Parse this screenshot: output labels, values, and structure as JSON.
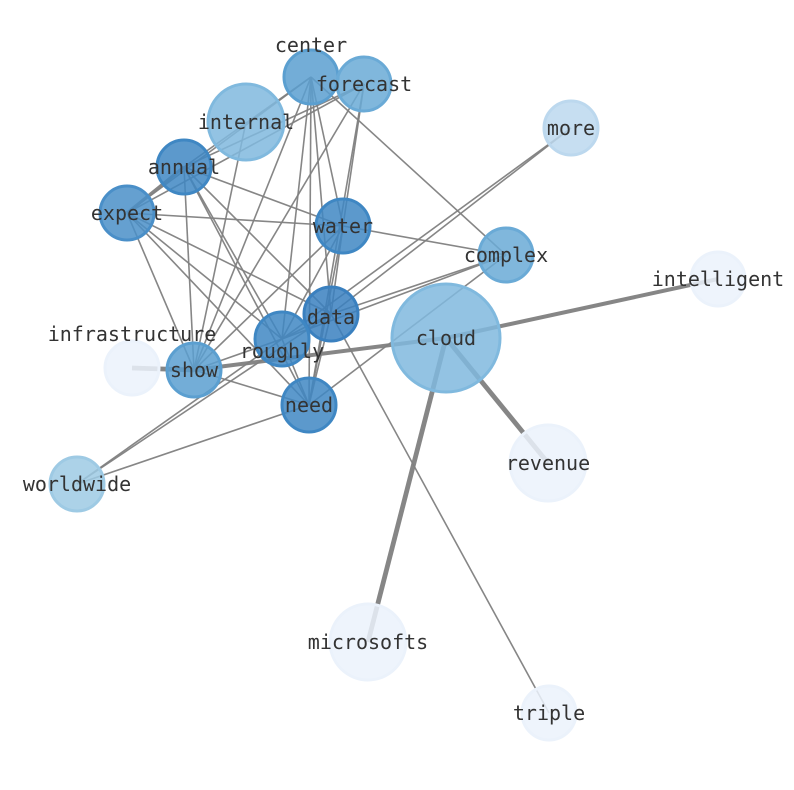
{
  "colors": {
    "edge": "#808080",
    "label": "#333333"
  },
  "nodes": [
    {
      "id": "center",
      "label": "center",
      "color": "#5b9fd0",
      "size": 1
    },
    {
      "id": "forecast",
      "label": "forecast",
      "color": "#6aaad6",
      "size": 1
    },
    {
      "id": "internal",
      "label": "internal",
      "color": "#80b9de",
      "size": 2
    },
    {
      "id": "annual",
      "label": "annual",
      "color": "#3f87c3",
      "size": 1
    },
    {
      "id": "expect",
      "label": "expect",
      "color": "#4a8fc8",
      "size": 1
    },
    {
      "id": "water",
      "label": "water",
      "color": "#3f87c3",
      "size": 1
    },
    {
      "id": "more",
      "label": "more",
      "color": "#bcd8ee",
      "size": 1
    },
    {
      "id": "complex",
      "label": "complex",
      "color": "#6aaad6",
      "size": 1
    },
    {
      "id": "intelligent",
      "label": "intelligent",
      "color": "#ebf2fb",
      "size": 1
    },
    {
      "id": "data",
      "label": "data",
      "color": "#3a80bf",
      "size": 1
    },
    {
      "id": "cloud",
      "label": "cloud",
      "color": "#80b9de",
      "size": 4
    },
    {
      "id": "roughly",
      "label": "roughly",
      "color": "#3f87c3",
      "size": 1
    },
    {
      "id": "infrastructure",
      "label": "infrastructure",
      "color": "#ebf2fb",
      "size": 1
    },
    {
      "id": "show",
      "label": "show",
      "color": "#5b9fd0",
      "size": 1
    },
    {
      "id": "need",
      "label": "need",
      "color": "#3f87c3",
      "size": 1
    },
    {
      "id": "revenue",
      "label": "revenue",
      "color": "#ebf2fb",
      "size": 2
    },
    {
      "id": "worldwide",
      "label": "worldwide",
      "color": "#9ecae4",
      "size": 1
    },
    {
      "id": "microsofts",
      "label": "microsofts",
      "color": "#ebf2fb",
      "size": 2
    },
    {
      "id": "triple",
      "label": "triple",
      "color": "#ebf2fb",
      "size": 1
    }
  ],
  "edges": [
    [
      "center",
      "expect",
      1
    ],
    [
      "center",
      "annual",
      1
    ],
    [
      "center",
      "water",
      1
    ],
    [
      "center",
      "roughly",
      1
    ],
    [
      "center",
      "need",
      1
    ],
    [
      "center",
      "data",
      1
    ],
    [
      "center",
      "complex",
      1
    ],
    [
      "center",
      "show",
      1
    ],
    [
      "forecast",
      "expect",
      1
    ],
    [
      "forecast",
      "annual",
      1
    ],
    [
      "forecast",
      "water",
      1
    ],
    [
      "forecast",
      "show",
      1
    ],
    [
      "forecast",
      "need",
      1
    ],
    [
      "internal",
      "show",
      1
    ],
    [
      "annual",
      "expect",
      2
    ],
    [
      "annual",
      "show",
      1
    ],
    [
      "annual",
      "roughly",
      1
    ],
    [
      "annual",
      "need",
      1
    ],
    [
      "annual",
      "water",
      1
    ],
    [
      "annual",
      "data",
      1
    ],
    [
      "expect",
      "water",
      1
    ],
    [
      "expect",
      "show",
      1
    ],
    [
      "expect",
      "roughly",
      1
    ],
    [
      "expect",
      "need",
      1
    ],
    [
      "expect",
      "data",
      1
    ],
    [
      "water",
      "complex",
      1
    ],
    [
      "water",
      "show",
      1
    ],
    [
      "water",
      "roughly",
      1
    ],
    [
      "water",
      "need",
      1
    ],
    [
      "water",
      "data",
      1
    ],
    [
      "data",
      "more",
      1
    ],
    [
      "data",
      "complex",
      1
    ],
    [
      "data",
      "worldwide",
      1
    ],
    [
      "data",
      "triple",
      1
    ],
    [
      "data",
      "roughly",
      1
    ],
    [
      "data",
      "need",
      1
    ],
    [
      "roughly",
      "more",
      1
    ],
    [
      "roughly",
      "complex",
      1
    ],
    [
      "roughly",
      "worldwide",
      1
    ],
    [
      "roughly",
      "need",
      1
    ],
    [
      "roughly",
      "show",
      1
    ],
    [
      "need",
      "worldwide",
      1
    ],
    [
      "need",
      "show",
      1
    ],
    [
      "need",
      "complex",
      1
    ],
    [
      "cloud",
      "show",
      2.5
    ],
    [
      "cloud",
      "intelligent",
      2.5
    ],
    [
      "cloud",
      "revenue",
      3
    ],
    [
      "cloud",
      "microsofts",
      3
    ],
    [
      "infrastructure",
      "show",
      3
    ]
  ]
}
